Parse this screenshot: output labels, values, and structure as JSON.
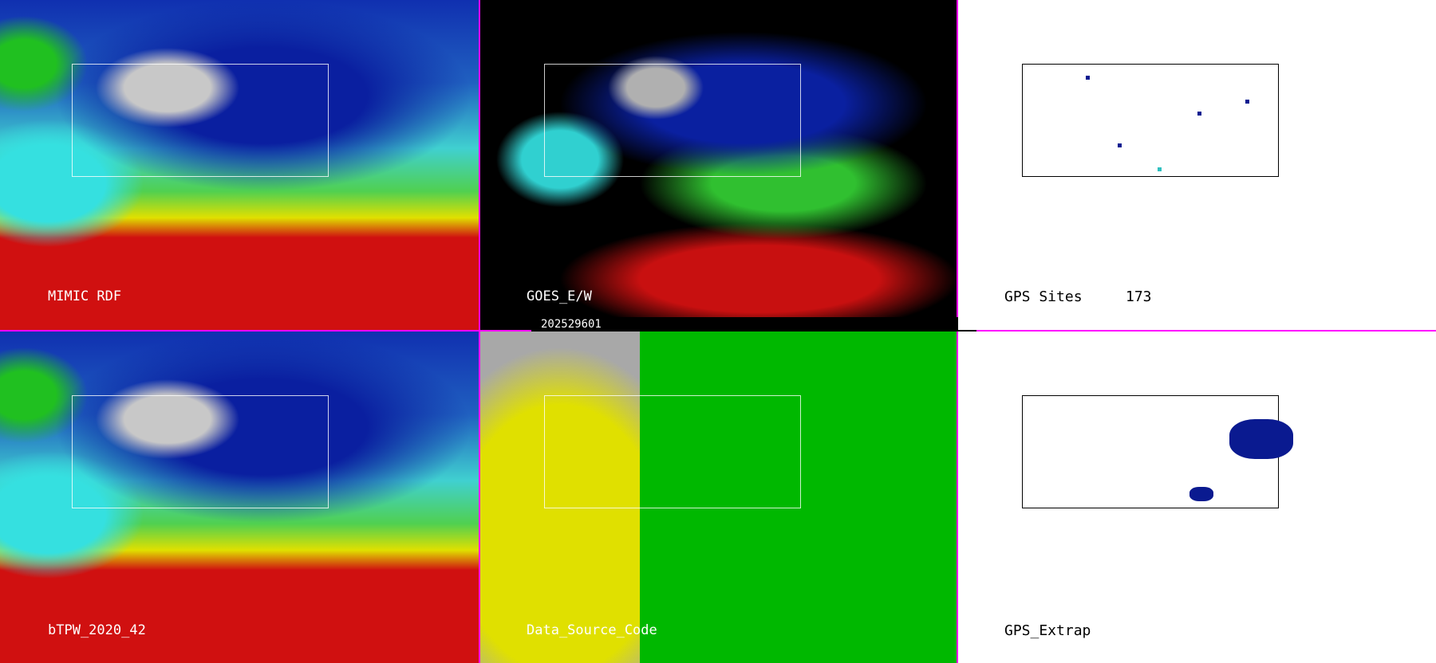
{
  "panels": [
    {
      "label": "MIMIC RDF"
    },
    {
      "label": "GOES_E/W",
      "timestamp": "202529601"
    },
    {
      "label": "GPS Sites",
      "count": "173"
    },
    {
      "label": "bTPW_2020_42"
    },
    {
      "label": "Data_Source_Code"
    },
    {
      "label": "GPS_Extrap"
    }
  ],
  "colors": {
    "border": "#ff00ff",
    "gps_site": "#0a1a90"
  }
}
